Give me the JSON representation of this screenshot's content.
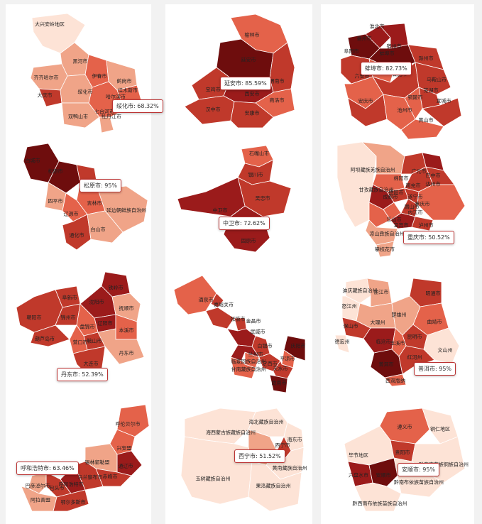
{
  "colors": {
    "dark": "#6e0d0d",
    "c1": "#9b1b1b",
    "c2": "#c0392b",
    "c3": "#e4624a",
    "c4": "#f0a488",
    "c5": "#fde3d6",
    "border": "#ffffff"
  },
  "maps": [
    {
      "id": "heilongjiang",
      "tooltip": "绥化市: 68.32%",
      "value": 68.32,
      "labels": [
        "大兴安岭地区",
        "黑河市",
        "齐齐哈尔市",
        "伊春市",
        "鹤岗市",
        "大庆市",
        "绥化市",
        "佳木斯市",
        "双鸭山市",
        "哈尔滨市",
        "七台河市",
        "牡丹江市"
      ]
    },
    {
      "id": "shaanxi",
      "tooltip": "延安市: 85.59%",
      "value": 85.59,
      "labels": [
        "榆林市",
        "延安市",
        "渭南市",
        "宝鸡市",
        "西安市",
        "商洛市",
        "汉中市",
        "安康市"
      ]
    },
    {
      "id": "anhui",
      "tooltip": "蚌埠市: 82.73%",
      "value": 82.73,
      "labels": [
        "淮北市",
        "亳州市",
        "宿州市",
        "蚌埠市",
        "阜阳市",
        "淮南市",
        "滁州市",
        "六安市",
        "合肥市",
        "马鞍山市",
        "芜湖市",
        "铜陵市",
        "安庆市",
        "池州市",
        "宣城市",
        "黄山市"
      ]
    },
    {
      "id": "jilin",
      "tooltip": "松原市: 95%",
      "value": 95,
      "labels": [
        "白城市",
        "松原市",
        "长春市",
        "吉林市",
        "四平市",
        "辽源市",
        "延边朝鲜族自治州",
        "通化市",
        "白山市"
      ]
    },
    {
      "id": "ningxia",
      "tooltip": "中卫市: 72.62%",
      "value": 72.62,
      "labels": [
        "石嘴山市",
        "银川市",
        "吴忠市",
        "中卫市",
        "固原市"
      ]
    },
    {
      "id": "sichuan",
      "tooltip": "重庆市: 50.52%",
      "value": 50.52,
      "labels": [
        "阿坝藏族羌族自治州",
        "广元市",
        "巴中市",
        "甘孜藏族自治州",
        "绵阳市",
        "南充市",
        "达州市",
        "德阳市",
        "成都市",
        "遂宁市",
        "重庆市",
        "眉山市",
        "内江市",
        "乐山市",
        "宜宾市",
        "凉山彝族自治州",
        "攀枝花市",
        "泸州市"
      ]
    },
    {
      "id": "liaoning",
      "tooltip": "丹东市: 52.39%",
      "value": 52.39,
      "labels": [
        "阜新市",
        "铁岭市",
        "朝阳市",
        "沈阳市",
        "抚顺市",
        "锦州市",
        "辽阳市",
        "盘锦市",
        "鞍山市",
        "本溪市",
        "葫芦岛市",
        "营口市",
        "丹东市",
        "大连市"
      ]
    },
    {
      "id": "gansu",
      "tooltip": "",
      "value": null,
      "labels": [
        "酒泉市",
        "嘉峪关市",
        "张掖市",
        "金昌市",
        "武威市",
        "白银市",
        "庆阳市",
        "兰州市",
        "平凉市",
        "临夏回族自治州",
        "定西市",
        "天水市",
        "甘南藏族自治州",
        "陇南市"
      ]
    },
    {
      "id": "yunnan",
      "tooltip": "普洱市: 95%",
      "value": 95,
      "labels": [
        "迪庆藏族自治州",
        "怒江州",
        "丽江市",
        "昭通市",
        "大理州",
        "曲靖市",
        "保山市",
        "楚雄州",
        "昆明市",
        "德宏州",
        "临沧市",
        "玉溪市",
        "普洱市",
        "红河州",
        "文山州",
        "西双版纳"
      ]
    },
    {
      "id": "neimenggu",
      "tooltip": "呼和浩特市: 63.46%",
      "value": 63.46,
      "labels": [
        "呼伦贝尔市",
        "兴安盟",
        "通辽市",
        "锡林郭勒盟",
        "赤峰市",
        "乌兰察布市",
        "呼和浩特市",
        "包头市",
        "巴彦淖尔市",
        "阿拉善盟",
        "鄂尔多斯市"
      ]
    },
    {
      "id": "qinghai",
      "tooltip": "西宁市: 51.52%",
      "value": 51.52,
      "labels": [
        "海北藏族自治州",
        "海西蒙古族藏族自治州",
        "海东市",
        "西宁市",
        "海南藏族自治州",
        "黄南藏族自治州",
        "玉树藏族自治州",
        "果洛藏族自治州"
      ]
    },
    {
      "id": "guizhou",
      "tooltip": "安顺市: 95%",
      "value": 95,
      "labels": [
        "遵义市",
        "铜仁地区",
        "毕节地区",
        "贵阳市",
        "黔东南苗族侗族自治州",
        "六盘水市",
        "安顺市",
        "黔南布依族苗族自治州",
        "黔西南布依族苗族自治州"
      ]
    }
  ]
}
